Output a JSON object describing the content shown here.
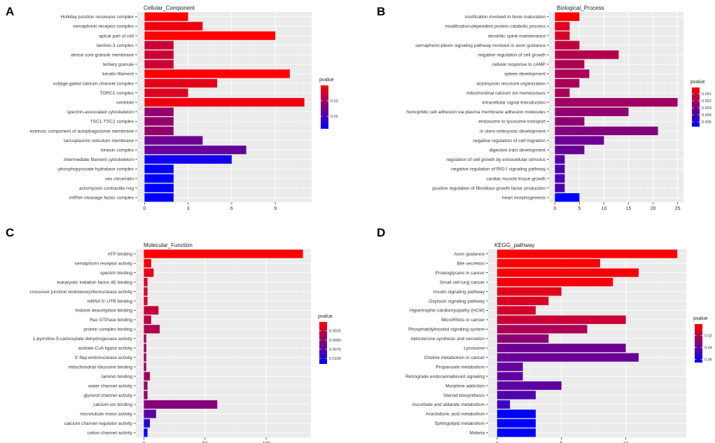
{
  "colors": {
    "panel_bg": "#ebebeb",
    "grid_major": "#ffffff",
    "grid_minor": "#f4f4f4",
    "low_p": "#ff0000",
    "high_p": "#0000ff"
  },
  "chart_data": [
    {
      "panel_label": "A",
      "type": "bar",
      "orientation": "horizontal",
      "title": "Cellular_Component",
      "categories": [
        "Holliday junction resolvase complex",
        "semaphorin receptor complex",
        "apical part of cell",
        "laminin-3 complex",
        "dense core granule membrane",
        "tertiary granule",
        "keratin filament",
        "voltage-gated calcium channel complex",
        "TORC1 complex",
        "centriole",
        "spectrin-associated cytoskeleton",
        "TSC1-TSC2 complex",
        "extrinsic component of autophagosome membrane",
        "sarcoplasmic reticulum membrane",
        "kinesin complex",
        "intermediate filament cytoskeleton",
        "phosphopyruvate hydratase complex",
        "sex chromatin",
        "actomyosin contractile ring",
        "mRNA cleavage factor complex"
      ],
      "values": [
        3,
        4,
        9,
        2,
        2,
        2,
        10,
        5,
        3,
        11,
        2,
        2,
        2,
        4,
        7,
        6,
        2,
        2,
        2,
        2
      ],
      "pvalue": [
        0.0005,
        0.002,
        0.0002,
        0.006,
        0.006,
        0.006,
        0.0002,
        0.003,
        0.004,
        0.0018,
        0.012,
        0.012,
        0.012,
        0.016,
        0.017,
        0.026,
        0.028,
        0.028,
        0.028,
        0.028
      ],
      "xlim": [
        -0.5,
        11.5
      ],
      "xticks": [
        0,
        3,
        6,
        9
      ],
      "legend": {
        "title": "pvalue",
        "range": [
          0.0002,
          0.028
        ],
        "breaks": [
          0.01,
          0.02
        ],
        "labels": [
          "0.01",
          "0.02"
        ],
        "direction": "red-to-blue"
      }
    },
    {
      "panel_label": "B",
      "type": "bar",
      "orientation": "horizontal",
      "title": "Biological_Process",
      "categories": [
        "ossification involved in bone maturation",
        "modification-dependent protein catabolic process",
        "dendritic spine maintenance",
        "semaphorin-plexin signaling pathway involved in axon guidance",
        "negative regulation of cell growth",
        "cellular response to cAMP",
        "spleen development",
        "actomyosin structure organization",
        "mitochondrial calcium ion homeostasis",
        "intracellular signal transduction",
        "homophilic cell adhesion via plasma membrane adhesion molecules",
        "endosome to lysosome transport",
        "in utero embryonic development",
        "negative regulation of cell migration",
        "digestive tract development",
        "regulation of cell growth by extracellular stimulus",
        "negative regulation of RIG-I signaling pathway",
        "cardiac muscle tissue growth",
        "positive regulation of fibroblast growth factor production",
        "heart morphogenesis"
      ],
      "values": [
        5,
        3,
        3,
        5,
        13,
        6,
        7,
        5,
        3,
        25,
        15,
        6,
        21,
        10,
        6,
        2,
        2,
        2,
        2,
        5
      ],
      "pvalue": [
        0.0001,
        0.0008,
        0.001,
        0.0015,
        0.0018,
        0.0019,
        0.002,
        0.002,
        0.002,
        0.0022,
        0.0025,
        0.0026,
        0.0028,
        0.0033,
        0.0034,
        0.0038,
        0.004,
        0.004,
        0.004,
        0.0057
      ],
      "xlim": [
        -1.2,
        26.2
      ],
      "xticks": [
        0,
        5,
        10,
        15,
        20,
        25
      ],
      "legend": {
        "title": "pvalue",
        "range": [
          0.0001,
          0.0057
        ],
        "breaks": [
          0.001,
          0.002,
          0.003,
          0.004,
          0.005
        ],
        "labels": [
          "0.001",
          "0.002",
          "0.003",
          "0.004",
          "0.005"
        ],
        "direction": "red-to-blue"
      }
    },
    {
      "panel_label": "C",
      "type": "bar",
      "orientation": "horizontal",
      "title": "Molecular_Function",
      "categories": [
        "ATP binding",
        "semaphorin receptor activity",
        "spectrin binding",
        "eukaryotic initiation factor 4E binding",
        "crossover junction endodeoxyribonuclease activity",
        "mRNA 5'-UTR binding",
        "histone deacetylase binding",
        "Rac GTPase binding",
        "protein complex binding",
        "1-pyrroline-5-carboxylate dehydrogenase activity",
        "acetate-CoA ligase activity",
        "3'-flap endonuclease activity",
        "mitochondrial ribosome binding",
        "laminin binding",
        "water channel activity",
        "glycerol channel activity",
        "calcium ion binding",
        "microtubule motor activity",
        "calcium channel regulator activity",
        "cation channel activity"
      ],
      "values": [
        130,
        6,
        8,
        3,
        3,
        3,
        12,
        6,
        13,
        2,
        2,
        2,
        2,
        5,
        3,
        3,
        60,
        10,
        5,
        3
      ],
      "pvalue": [
        0.0001,
        0.0008,
        0.0012,
        0.0018,
        0.0018,
        0.002,
        0.0028,
        0.0033,
        0.0035,
        0.0042,
        0.0042,
        0.0042,
        0.0042,
        0.0045,
        0.005,
        0.005,
        0.0055,
        0.0075,
        0.0095,
        0.0115
      ],
      "xlim": [
        -6.5,
        136.5
      ],
      "xticks": [
        0,
        50,
        100
      ],
      "legend": {
        "title": "pvalue",
        "range": [
          0.0001,
          0.0115
        ],
        "breaks": [
          0.0025,
          0.005,
          0.0075,
          0.01
        ],
        "labels": [
          "0.0025",
          "0.0050",
          "0.0075",
          "0.0100"
        ],
        "direction": "red-to-blue"
      }
    },
    {
      "panel_label": "D",
      "type": "bar",
      "orientation": "horizontal",
      "title": "KEGG_pathway",
      "categories": [
        "Axon guidance",
        "Bile secretion",
        "Proteoglycans in cancer",
        "Small cell lung cancer",
        "Insulin signaling pathway",
        "Oxytocin signaling pathway",
        "Hypertrophic cardiomyopathy (HCM)",
        "MicroRNAs in cancer",
        "Phosphatidylinositol signaling system",
        "Aldosterone synthesis and secretion",
        "Lysosome",
        "Choline metabolism in cancer",
        "Propanoate metabolism",
        "Retrograde endocannabinoid signaling",
        "Morphine addiction",
        "Steroid biosynthesis",
        "Ascorbate and aldarate metabolism",
        "Arachidonic acid metabolism",
        "Sphingolipid metabolism",
        "Malaria"
      ],
      "values": [
        14,
        8,
        11,
        9,
        5,
        4,
        3,
        10,
        7,
        4,
        10,
        11,
        2,
        2,
        5,
        3,
        1,
        3,
        3,
        3
      ],
      "pvalue": [
        0.001,
        0.002,
        0.003,
        0.004,
        0.008,
        0.01,
        0.012,
        0.015,
        0.022,
        0.03,
        0.038,
        0.039,
        0.04,
        0.041,
        0.042,
        0.045,
        0.05,
        0.065,
        0.065,
        0.065
      ],
      "xlim": [
        -0.7,
        14.7
      ],
      "xticks": [
        0,
        5,
        10
      ],
      "legend": {
        "title": "pvalue",
        "range": [
          0.001,
          0.065
        ],
        "breaks": [
          0.02,
          0.04,
          0.06
        ],
        "labels": [
          "0.02",
          "0.04",
          "0.06"
        ],
        "direction": "red-to-blue"
      }
    }
  ]
}
